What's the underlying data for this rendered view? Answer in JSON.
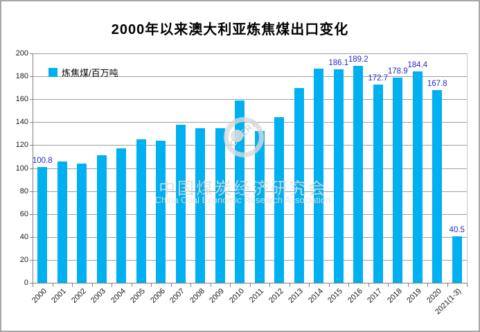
{
  "title": "2000年以来澳大利亚炼焦煤出口变化",
  "legend": {
    "label": "炼焦煤/百万吨",
    "color": "#00b0f0",
    "position": "top-left"
  },
  "watermark": {
    "logo_text": "CCERA",
    "cn": "中国煤炭经济研究会",
    "en": "China Coal Economic Research Association"
  },
  "colors": {
    "bar": "#00b0f0",
    "data_label": "#2929cc",
    "gridline": "#9d9d9d",
    "axis": "#808080",
    "tick_text": "#1a1a1a"
  },
  "chart_data": {
    "type": "bar",
    "title": "2000年以来澳大利亚炼焦煤出口变化",
    "xlabel": "",
    "ylabel": "炼焦煤/百万吨",
    "ylim": [
      0,
      200
    ],
    "ytick_step": 20,
    "grid": true,
    "legend_position": "top-left",
    "categories": [
      "2000",
      "2001",
      "2002",
      "2003",
      "2004",
      "2005",
      "2006",
      "2007",
      "2008",
      "2009",
      "2010",
      "2011",
      "2012",
      "2013",
      "2014",
      "2015",
      "2016",
      "2017",
      "2018",
      "2019",
      "2020",
      "2021(1-3)"
    ],
    "values": [
      100.8,
      106,
      104,
      111,
      117,
      125,
      124,
      138,
      134.5,
      135,
      159,
      132.5,
      144.5,
      170,
      186.5,
      186.1,
      189.2,
      172.7,
      178.9,
      184.4,
      167.8,
      40.5
    ],
    "data_labels": [
      "100.8",
      "",
      "",
      "",
      "",
      "",
      "",
      "",
      "",
      "",
      "",
      "",
      "",
      "",
      "",
      "186.1",
      "189.2",
      "172.7",
      "178.9",
      "184.4",
      "167.8",
      "40.5"
    ]
  }
}
